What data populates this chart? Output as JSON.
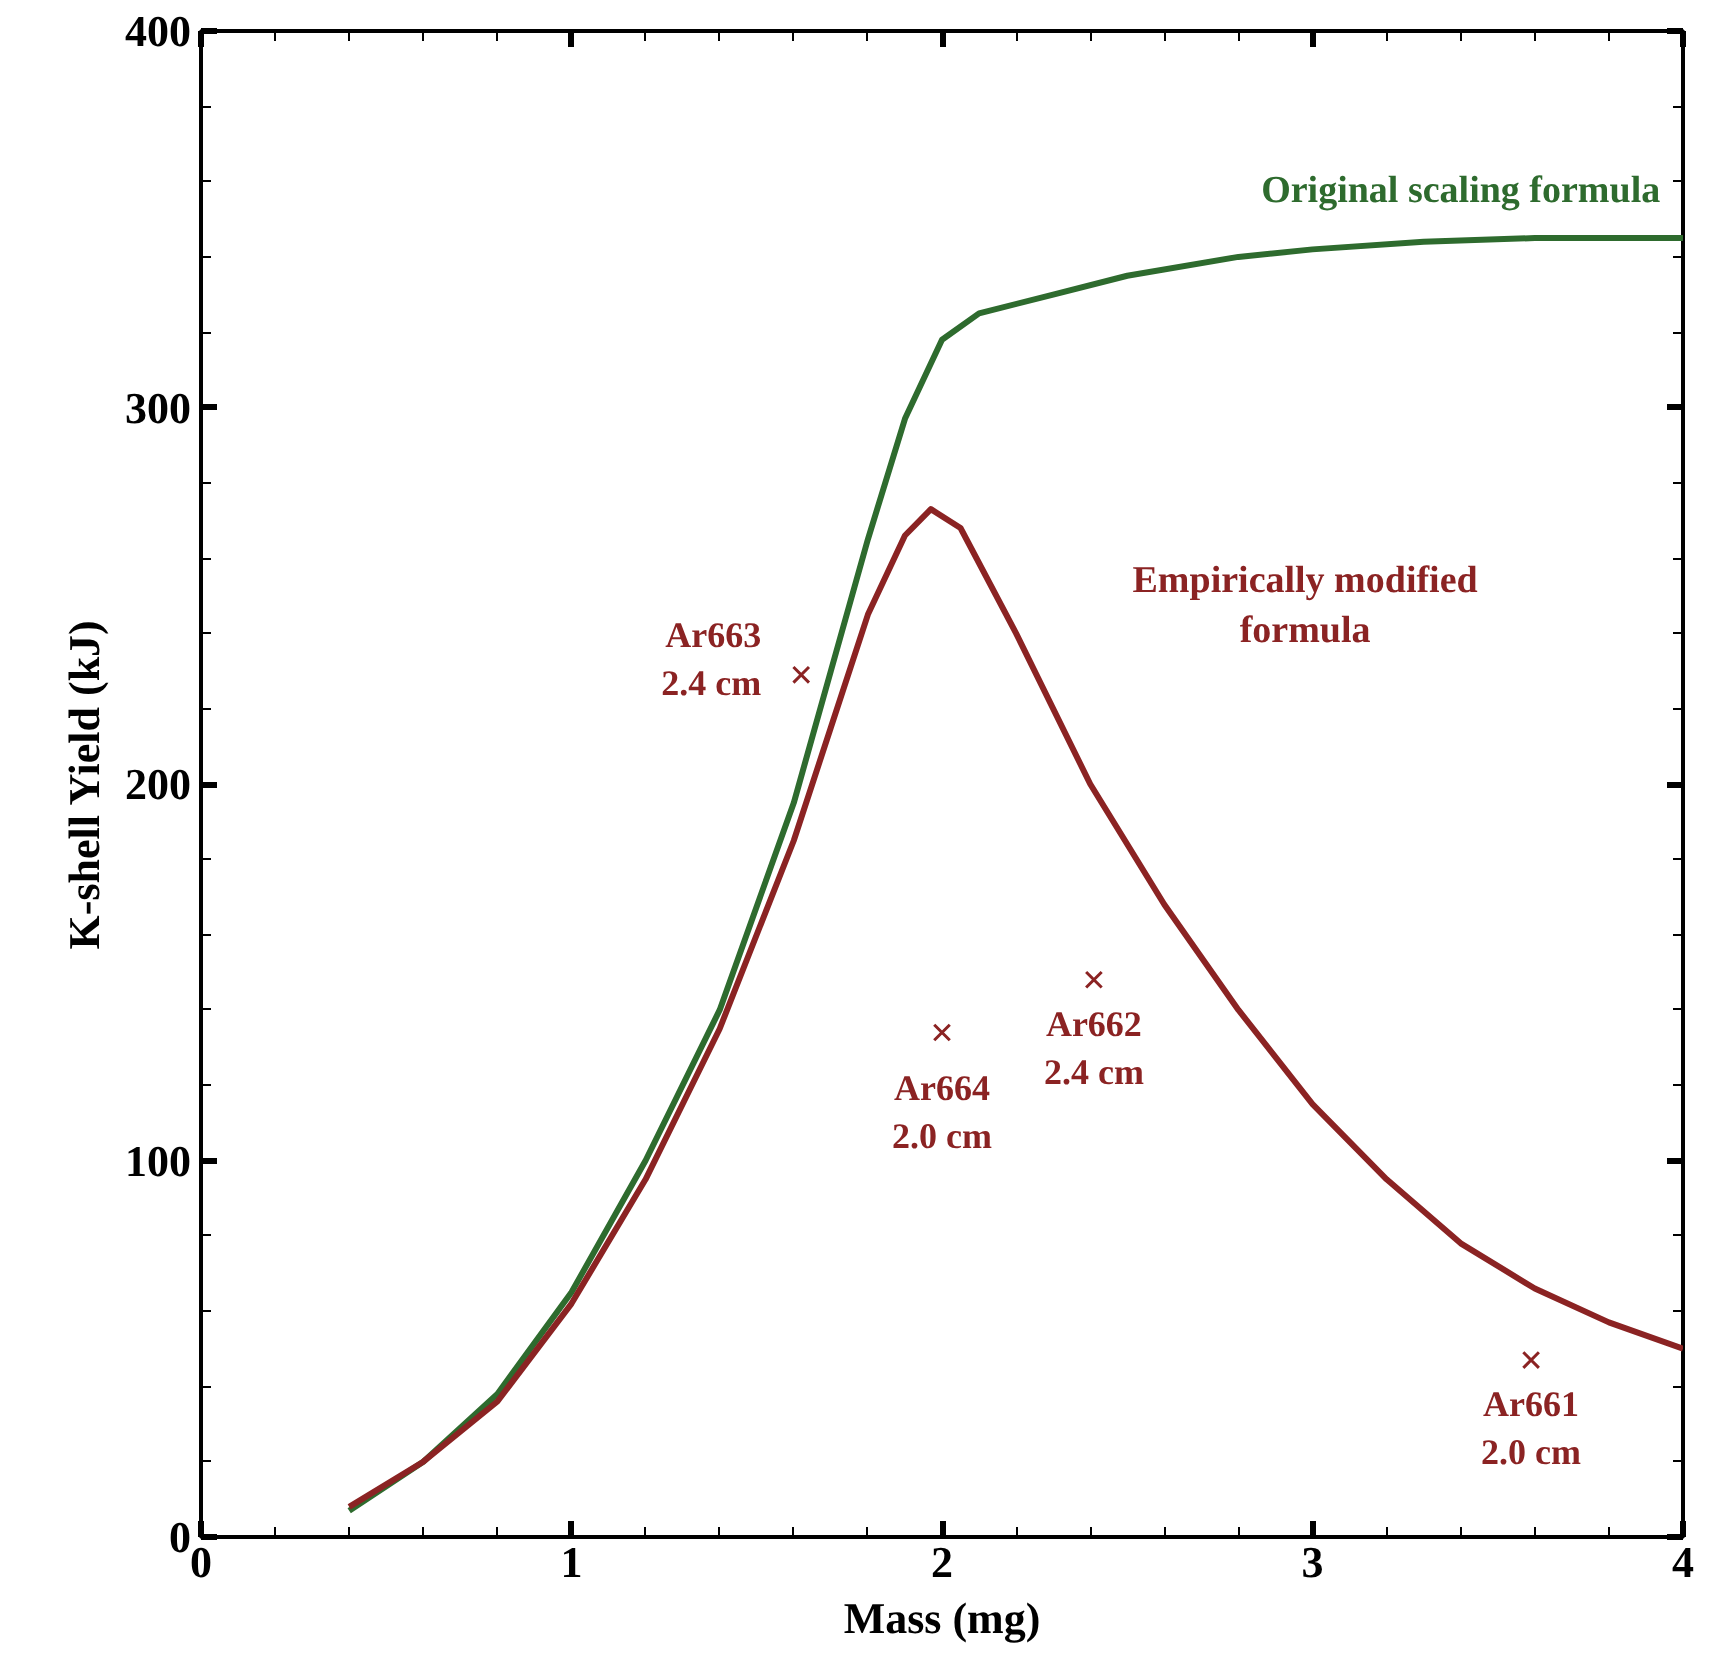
{
  "chart_data": {
    "type": "line",
    "xlabel": "Mass (mg)",
    "ylabel": "K-shell Yield (kJ)",
    "xlim": [
      0,
      4
    ],
    "ylim": [
      0,
      400
    ],
    "xticks": [
      0,
      1,
      2,
      3,
      4
    ],
    "yticks": [
      0,
      100,
      200,
      300,
      400
    ],
    "grid": false,
    "line_style": "solid",
    "series": [
      {
        "name": "Original scaling formula",
        "color": "#2e6b2e",
        "x": [
          0.4,
          0.6,
          0.8,
          1.0,
          1.2,
          1.4,
          1.6,
          1.7,
          1.8,
          1.9,
          2.0,
          2.1,
          2.3,
          2.5,
          2.8,
          3.0,
          3.3,
          3.6,
          4.0
        ],
        "values": [
          7,
          20,
          38,
          65,
          100,
          140,
          195,
          230,
          265,
          297,
          318,
          325,
          330,
          335,
          340,
          342,
          344,
          345,
          345
        ]
      },
      {
        "name": "Empirically modified\nformula",
        "color": "#8b2323",
        "x": [
          0.4,
          0.6,
          0.8,
          1.0,
          1.2,
          1.4,
          1.6,
          1.7,
          1.8,
          1.9,
          1.97,
          2.05,
          2.2,
          2.4,
          2.6,
          2.8,
          3.0,
          3.2,
          3.4,
          3.6,
          3.8,
          4.0
        ],
        "values": [
          8,
          20,
          36,
          62,
          95,
          135,
          185,
          215,
          245,
          266,
          273,
          268,
          240,
          200,
          168,
          140,
          115,
          95,
          78,
          66,
          57,
          50
        ]
      },
      {
        "type": "scatter",
        "marker": "cross",
        "color": "#8b2323",
        "x": [
          1.62,
          2.0,
          2.41,
          3.59
        ],
        "values": [
          229,
          134,
          148,
          47
        ]
      }
    ],
    "annotations": [
      {
        "text": "Ar663\n2.4 cm",
        "x": 1.62,
        "y": 229
      },
      {
        "text": "Ar664\n2.0 cm",
        "x": 2.0,
        "y": 134
      },
      {
        "text": "Ar662\n2.4 cm",
        "x": 2.41,
        "y": 148
      },
      {
        "text": "Ar661\n2.0 cm",
        "x": 3.59,
        "y": 47
      }
    ]
  }
}
